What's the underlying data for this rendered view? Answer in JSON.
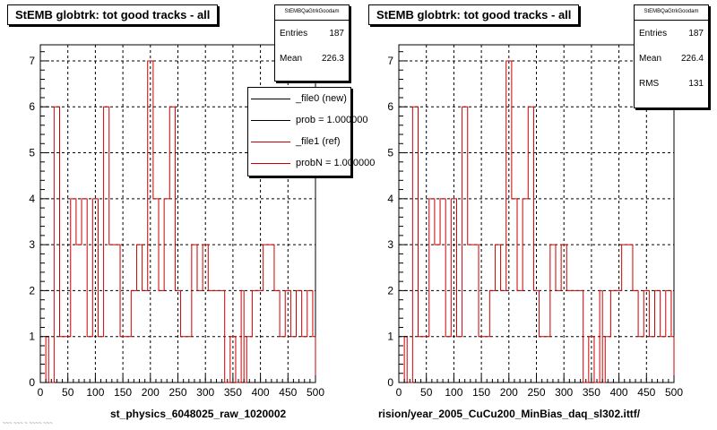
{
  "chart_data": [
    {
      "type": "histogram",
      "title": "StEMB globtrk: tot good tracks - all",
      "xlabel": "st_physics_6048025_raw_1020002",
      "xlim": [
        0,
        500
      ],
      "ylim": [
        0,
        7.35
      ],
      "xticks": [
        "0",
        "50",
        "100",
        "150",
        "200",
        "250",
        "300",
        "350",
        "400",
        "450",
        "500"
      ],
      "yticks": [
        "0",
        "1",
        "2",
        "3",
        "4",
        "5",
        "6",
        "7"
      ],
      "grid": true,
      "bin_edges": [
        0,
        10,
        15,
        25,
        35,
        45,
        55,
        65,
        75,
        85,
        95,
        105,
        115,
        125,
        135,
        145,
        155,
        165,
        175,
        185,
        195,
        205,
        215,
        225,
        235,
        245,
        255,
        265,
        275,
        285,
        295,
        305,
        315,
        325,
        335,
        345,
        355,
        365,
        370,
        375,
        385,
        395,
        405,
        415,
        425,
        435,
        445,
        455,
        465,
        475,
        485,
        495,
        500
      ],
      "series": [
        {
          "name": "_file1 (ref)",
          "color": "#cc0000",
          "values": [
            0,
            1,
            0,
            6,
            1,
            1,
            4,
            3,
            4,
            1,
            4,
            1,
            6,
            3,
            3,
            1,
            1,
            2,
            3,
            2,
            7,
            4,
            2,
            4,
            6,
            2,
            1,
            1,
            3,
            2,
            3,
            2,
            2,
            2,
            0,
            1,
            0,
            2,
            0,
            1,
            2,
            2,
            3,
            3,
            2,
            1,
            2,
            1,
            2,
            1,
            2,
            1
          ]
        }
      ],
      "stats": {
        "header": "StEMBQaGtrkGoodam",
        "entries_label": "Entries",
        "entries": "187",
        "mean_label": "Mean",
        "mean": "226.3"
      },
      "legend": [
        "_file0 (new)",
        "prob = 1.000000",
        "_file1 (ref)",
        "probN = 1.000000"
      ],
      "legend_position": "top-right"
    },
    {
      "type": "histogram",
      "title": "StEMB globtrk: tot good tracks - all",
      "xlabel": "rision/year_2005_CuCu200_MinBias_daq_sl302.ittf/",
      "xlim": [
        0,
        500
      ],
      "ylim": [
        0,
        7.35
      ],
      "xticks": [
        "0",
        "50",
        "100",
        "150",
        "200",
        "250",
        "300",
        "350",
        "400",
        "450",
        "500"
      ],
      "yticks": [
        "0",
        "1",
        "2",
        "3",
        "4",
        "5",
        "6",
        "7"
      ],
      "grid": true,
      "bin_edges": [
        0,
        10,
        15,
        25,
        35,
        45,
        55,
        65,
        75,
        85,
        95,
        105,
        115,
        125,
        135,
        145,
        155,
        165,
        175,
        185,
        195,
        205,
        215,
        225,
        235,
        245,
        255,
        265,
        275,
        285,
        295,
        305,
        315,
        325,
        335,
        345,
        355,
        365,
        370,
        375,
        385,
        395,
        405,
        415,
        425,
        435,
        445,
        455,
        465,
        475,
        485,
        495,
        500
      ],
      "series": [
        {
          "color": "#cc0000",
          "values": [
            0,
            1,
            0,
            6,
            1,
            1,
            4,
            3,
            4,
            1,
            4,
            1,
            6,
            3,
            3,
            1,
            1,
            2,
            3,
            2,
            7,
            4,
            2,
            4,
            6,
            2,
            1,
            1,
            3,
            2,
            3,
            2,
            2,
            2,
            0,
            1,
            0,
            2,
            0,
            1,
            2,
            2,
            3,
            3,
            2,
            1,
            2,
            1,
            2,
            1,
            2,
            1
          ]
        }
      ],
      "stats": {
        "header": "StEMBQaGtrkGoodam",
        "entries_label": "Entries",
        "entries": "187",
        "mean_label": "Mean",
        "mean": "226.4",
        "rms_label": "RMS",
        "rms": "131"
      }
    }
  ],
  "footer_note": "~~~ ~~~ ~ ~~~~ ~~~"
}
